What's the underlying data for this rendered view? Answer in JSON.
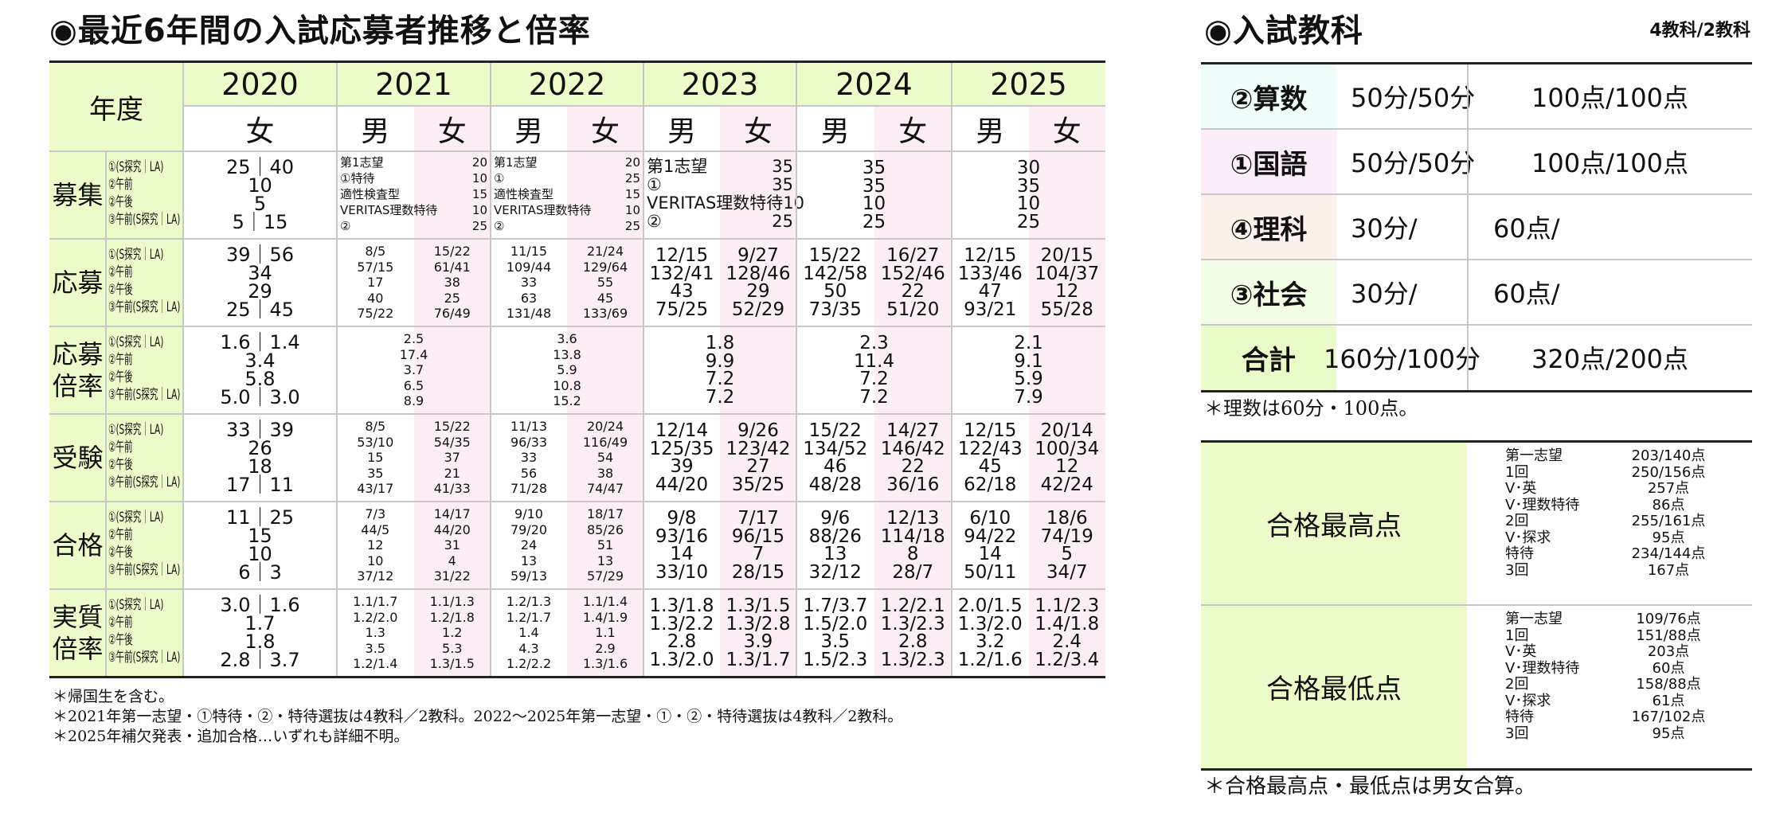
{
  "left": {
    "title": "◉最近6年間の入試応募者推移と倍率",
    "year_header": "年度",
    "years": [
      {
        "year": "2020",
        "sexes": [
          "女"
        ]
      },
      {
        "year": "2021",
        "sexes": [
          "男",
          "女"
        ]
      },
      {
        "year": "2022",
        "sexes": [
          "男",
          "女"
        ]
      },
      {
        "year": "2023",
        "sexes": [
          "男",
          "女"
        ]
      },
      {
        "year": "2024",
        "sexes": [
          "男",
          "女"
        ]
      },
      {
        "year": "2025",
        "sexes": [
          "男",
          "女"
        ]
      }
    ],
    "sublabels": [
      "①(S探究｜LA)",
      "②午前",
      "②午後",
      "③午前(S探究｜LA)"
    ],
    "sections": [
      {
        "label": [
          "募集"
        ],
        "cells": [
          {
            "type": "merged",
            "lines": [
              "25｜40",
              "10",
              "5",
              "5｜15"
            ]
          },
          {
            "type": "pairs",
            "lines": [
              [
                "第1志望",
                "20"
              ],
              [
                "①特待",
                "10"
              ],
              [
                "適性検査型",
                "15"
              ],
              [
                "VERITAS理数特待",
                "10"
              ],
              [
                "②",
                "25"
              ]
            ]
          },
          {
            "type": "pairs",
            "lines": [
              [
                "第1志望",
                "20"
              ],
              [
                "①",
                "25"
              ],
              [
                "適性検査型",
                "15"
              ],
              [
                "VERITAS理数特待",
                "10"
              ],
              [
                "②",
                "25"
              ]
            ]
          },
          {
            "type": "pairs",
            "lines": [
              [
                "第1志望",
                "35"
              ],
              [
                "①",
                "35"
              ],
              [
                "VERITAS理数特待",
                "10"
              ],
              [
                "②",
                "25"
              ]
            ]
          },
          {
            "type": "merged",
            "lines": [
              "35",
              "35",
              "10",
              "25"
            ]
          },
          {
            "type": "merged",
            "lines": [
              "30",
              "35",
              "10",
              "25"
            ]
          }
        ]
      },
      {
        "label": [
          "応募"
        ],
        "cells": [
          {
            "type": "merged",
            "lines": [
              "39｜56",
              "34",
              "29",
              "25｜45"
            ]
          },
          {
            "type": "split",
            "male": [
              "8/5",
              "57/15",
              "17",
              "40",
              "75/22"
            ],
            "female": [
              "15/22",
              "61/41",
              "38",
              "25",
              "76/49"
            ]
          },
          {
            "type": "split",
            "male": [
              "11/15",
              "109/44",
              "33",
              "63",
              "131/48"
            ],
            "female": [
              "21/24",
              "129/64",
              "55",
              "45",
              "133/69"
            ]
          },
          {
            "type": "split",
            "male": [
              "12/15",
              "132/41",
              "43",
              "75/25"
            ],
            "female": [
              "9/27",
              "128/46",
              "29",
              "52/29"
            ]
          },
          {
            "type": "split",
            "male": [
              "15/22",
              "142/58",
              "50",
              "73/35"
            ],
            "female": [
              "16/27",
              "152/46",
              "22",
              "51/20"
            ]
          },
          {
            "type": "split",
            "male": [
              "12/15",
              "133/46",
              "47",
              "93/21"
            ],
            "female": [
              "20/15",
              "104/37",
              "12",
              "55/28"
            ]
          }
        ]
      },
      {
        "label": [
          "応募",
          "倍率"
        ],
        "cells": [
          {
            "type": "merged",
            "lines": [
              "1.6｜1.4",
              "3.4",
              "5.8",
              "5.0｜3.0"
            ]
          },
          {
            "type": "merged",
            "lines": [
              "2.5",
              "17.4",
              "3.7",
              "6.5",
              "8.9"
            ]
          },
          {
            "type": "merged",
            "lines": [
              "3.6",
              "13.8",
              "5.9",
              "10.8",
              "15.2"
            ]
          },
          {
            "type": "merged",
            "lines": [
              "1.8",
              "9.9",
              "7.2",
              "7.2"
            ]
          },
          {
            "type": "merged",
            "lines": [
              "2.3",
              "11.4",
              "7.2",
              "7.2"
            ]
          },
          {
            "type": "merged",
            "lines": [
              "2.1",
              "9.1",
              "5.9",
              "7.9"
            ]
          }
        ]
      },
      {
        "label": [
          "受験"
        ],
        "cells": [
          {
            "type": "merged",
            "lines": [
              "33｜39",
              "26",
              "18",
              "17｜11"
            ]
          },
          {
            "type": "split",
            "male": [
              "8/5",
              "53/10",
              "15",
              "35",
              "43/17"
            ],
            "female": [
              "15/22",
              "54/35",
              "37",
              "21",
              "41/33"
            ]
          },
          {
            "type": "split",
            "male": [
              "11/13",
              "96/33",
              "33",
              "56",
              "71/28"
            ],
            "female": [
              "20/24",
              "116/49",
              "54",
              "38",
              "74/47"
            ]
          },
          {
            "type": "split",
            "male": [
              "12/14",
              "125/35",
              "39",
              "44/20"
            ],
            "female": [
              "9/26",
              "123/42",
              "27",
              "35/25"
            ]
          },
          {
            "type": "split",
            "male": [
              "15/22",
              "134/52",
              "46",
              "48/28"
            ],
            "female": [
              "14/27",
              "146/42",
              "22",
              "36/16"
            ]
          },
          {
            "type": "split",
            "male": [
              "12/15",
              "122/43",
              "45",
              "62/18"
            ],
            "female": [
              "20/14",
              "100/34",
              "12",
              "42/24"
            ]
          }
        ]
      },
      {
        "label": [
          "合格"
        ],
        "cells": [
          {
            "type": "merged",
            "lines": [
              "11｜25",
              "15",
              "10",
              "6｜3"
            ]
          },
          {
            "type": "split",
            "male": [
              "7/3",
              "44/5",
              "12",
              "10",
              "37/12"
            ],
            "female": [
              "14/17",
              "44/20",
              "31",
              "4",
              "31/22"
            ]
          },
          {
            "type": "split",
            "male": [
              "9/10",
              "79/20",
              "24",
              "13",
              "59/13"
            ],
            "female": [
              "18/17",
              "85/26",
              "51",
              "13",
              "57/29"
            ]
          },
          {
            "type": "split",
            "male": [
              "9/8",
              "93/16",
              "14",
              "33/10"
            ],
            "female": [
              "7/17",
              "96/15",
              "7",
              "28/15"
            ]
          },
          {
            "type": "split",
            "male": [
              "9/6",
              "88/26",
              "13",
              "32/12"
            ],
            "female": [
              "12/13",
              "114/18",
              "8",
              "28/7"
            ]
          },
          {
            "type": "split",
            "male": [
              "6/10",
              "94/22",
              "14",
              "50/11"
            ],
            "female": [
              "18/6",
              "74/19",
              "5",
              "34/7"
            ]
          }
        ]
      },
      {
        "label": [
          "実質",
          "倍率"
        ],
        "cells": [
          {
            "type": "merged",
            "lines": [
              "3.0｜1.6",
              "1.7",
              "1.8",
              "2.8｜3.7"
            ]
          },
          {
            "type": "split",
            "male": [
              "1.1/1.7",
              "1.2/2.0",
              "1.3",
              "3.5",
              "1.2/1.4"
            ],
            "female": [
              "1.1/1.3",
              "1.2/1.8",
              "1.2",
              "5.3",
              "1.3/1.5"
            ]
          },
          {
            "type": "split",
            "male": [
              "1.2/1.3",
              "1.2/1.7",
              "1.4",
              "4.3",
              "1.2/2.2"
            ],
            "female": [
              "1.1/1.4",
              "1.4/1.9",
              "1.1",
              "2.9",
              "1.3/1.6"
            ]
          },
          {
            "type": "split",
            "male": [
              "1.3/1.8",
              "1.3/2.2",
              "2.8",
              "1.3/2.0"
            ],
            "female": [
              "1.3/1.5",
              "1.3/2.8",
              "3.9",
              "1.3/1.7"
            ]
          },
          {
            "type": "split",
            "male": [
              "1.7/3.7",
              "1.5/2.0",
              "3.5",
              "1.5/2.3"
            ],
            "female": [
              "1.2/2.1",
              "1.3/2.3",
              "2.8",
              "1.3/2.3"
            ]
          },
          {
            "type": "split",
            "male": [
              "2.0/1.5",
              "1.3/2.0",
              "3.2",
              "1.2/1.6"
            ],
            "female": [
              "1.1/2.3",
              "1.4/1.8",
              "2.4",
              "1.2/3.4"
            ]
          }
        ]
      }
    ],
    "notes": [
      "＊帰国生を含む。",
      "＊2021年第一志望・①特待・②・特待選抜は4教科／2教科。2022～2025年第一志望・①・②・特待選抜は4教科／2教科。",
      "＊2025年補欠発表・追加合格…いずれも詳細不明。"
    ]
  },
  "right": {
    "title": "◉入試教科",
    "subtitle": "4教科/2教科",
    "subjects": [
      {
        "name": "②算数",
        "time": "50分/50分",
        "points": "100点/100点",
        "color": "#eefcfa"
      },
      {
        "name": "①国語",
        "time": "50分/50分",
        "points": "100点/100点",
        "color": "#fbeef8"
      },
      {
        "name": "④理科",
        "time": "30分/",
        "points": "60点/",
        "color": "#fdf1ec"
      },
      {
        "name": "③社会",
        "time": "30分/",
        "points": "60点/",
        "color": "#f2fde6"
      },
      {
        "name": "合計",
        "time": "160分/100分",
        "points": "320点/200点",
        "color": "#e8fbc9"
      }
    ],
    "subject_note": "＊理数は60分・100点。",
    "scores": [
      {
        "label": "合格最高点",
        "rows": [
          [
            "第一志望",
            "203/140点"
          ],
          [
            "1回",
            "250/156点"
          ],
          [
            "V･英",
            "257点"
          ],
          [
            "V･理数特待",
            "86点"
          ],
          [
            "2回",
            "255/161点"
          ],
          [
            "V･探求",
            "95点"
          ],
          [
            "特待",
            "234/144点"
          ],
          [
            "3回",
            "167点"
          ]
        ]
      },
      {
        "label": "合格最低点",
        "rows": [
          [
            "第一志望",
            "109/76点"
          ],
          [
            "1回",
            "151/88点"
          ],
          [
            "V･英",
            "203点"
          ],
          [
            "V･理数特待",
            "60点"
          ],
          [
            "2回",
            "158/88点"
          ],
          [
            "V･探求",
            "61点"
          ],
          [
            "特待",
            "167/102点"
          ],
          [
            "3回",
            "95点"
          ]
        ]
      }
    ],
    "score_note": "＊合格最高点・最低点は男女合算。"
  }
}
